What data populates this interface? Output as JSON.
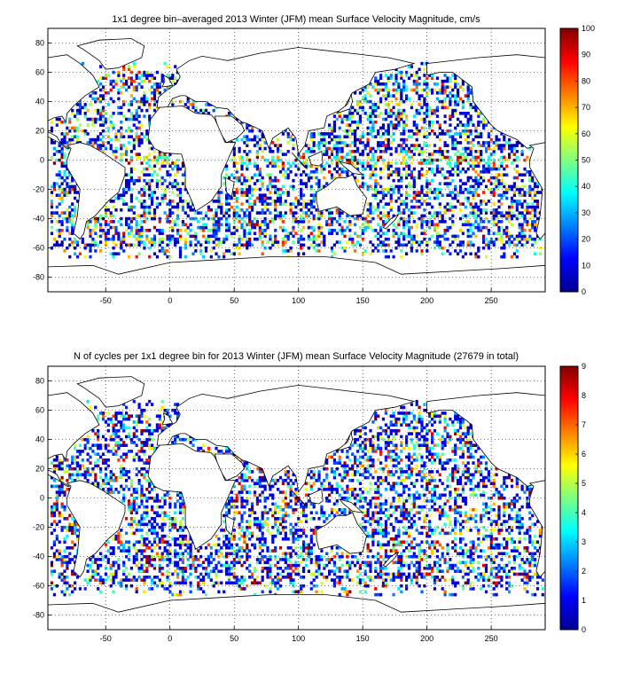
{
  "chart_data": [
    {
      "type": "heatmap",
      "title": "1x1 degree bin–averaged 2013 Winter (JFM) mean Surface Velocity Magnitude, cm/s",
      "xlabel": "",
      "ylabel": "",
      "xlim": [
        -95,
        292
      ],
      "ylim": [
        -90,
        90
      ],
      "x_ticks": [
        -50,
        0,
        50,
        100,
        150,
        200,
        250
      ],
      "y_ticks": [
        -80,
        -60,
        -40,
        -20,
        0,
        20,
        40,
        60,
        80
      ],
      "grid": true,
      "colorbar": {
        "min": 0,
        "max": 100,
        "ticks": [
          0,
          10,
          20,
          30,
          40,
          50,
          60,
          70,
          80,
          90,
          100
        ],
        "colormap": "jet"
      },
      "data_description_colors": {
        "low": "#00008f",
        "mid": "#7fff7f",
        "high": "#800000"
      }
    },
    {
      "type": "heatmap",
      "title": "N of cycles per 1x1 degree bin for 2013 Winter (JFM) mean Surface Velocity Magnitude (27679 in total)",
      "xlabel": "",
      "ylabel": "",
      "xlim": [
        -95,
        292
      ],
      "ylim": [
        -90,
        90
      ],
      "x_ticks": [
        -50,
        0,
        50,
        100,
        150,
        200,
        250
      ],
      "y_ticks": [
        -80,
        -60,
        -40,
        -20,
        0,
        20,
        40,
        60,
        80
      ],
      "grid": true,
      "colorbar": {
        "min": 0,
        "max": 9,
        "ticks": [
          0,
          1,
          2,
          3,
          4,
          5,
          6,
          7,
          8,
          9
        ],
        "colormap": "jet"
      }
    }
  ]
}
